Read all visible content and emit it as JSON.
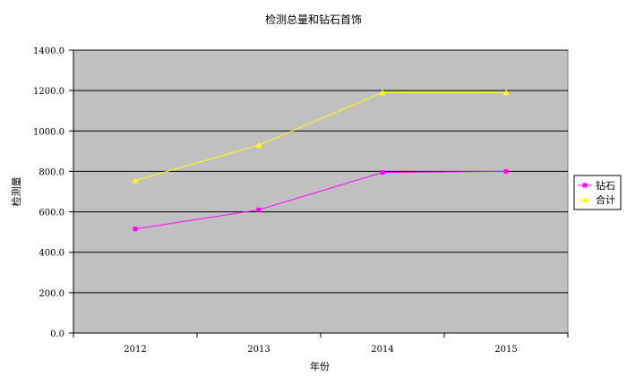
{
  "chart_data": {
    "type": "line",
    "title": "检测总量和钻石首饰",
    "xlabel": "年份",
    "ylabel": "检测量",
    "categories": [
      "2012",
      "2013",
      "2014",
      "2015"
    ],
    "ylim": [
      0,
      1400
    ],
    "yticks": [
      "0.0",
      "200.0",
      "400.0",
      "600.0",
      "800.0",
      "1000.0",
      "1200.0",
      "1400.0"
    ],
    "ytick_values": [
      0,
      200,
      400,
      600,
      800,
      1000,
      1200,
      1400
    ],
    "grid": true,
    "legend_position": "right",
    "plot_background": "#c0c0c0",
    "series": [
      {
        "name": "钻石",
        "values": [
          515,
          610,
          795,
          800
        ],
        "color": "#ff00ff",
        "marker": "square"
      },
      {
        "name": "合计",
        "values": [
          755,
          930,
          1190,
          1190
        ],
        "color": "#ffff00",
        "marker": "triangle"
      }
    ]
  }
}
